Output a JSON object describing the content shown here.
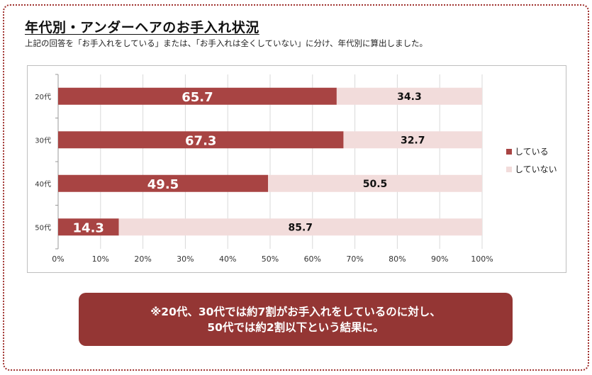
{
  "title": "年代別・アンダーヘアのお手入れ状況",
  "subtitle": "上記の回答を「お手入れをしている」または、「お手入れは全くしていない」に分け、年代別に算出しました。",
  "colors": {
    "doing": "#a84443",
    "not_doing": "#f2dcdb",
    "accent": "#943634"
  },
  "chart_data": {
    "type": "bar",
    "orientation": "horizontal",
    "stacked": true,
    "categories": [
      "20代",
      "30代",
      "40代",
      "50代"
    ],
    "series": [
      {
        "name": "している",
        "values": [
          65.7,
          67.3,
          49.5,
          14.3
        ],
        "labels": [
          "65.7",
          "67.3",
          "49.5",
          "14.3"
        ]
      },
      {
        "name": "していない",
        "values": [
          34.3,
          32.7,
          50.5,
          85.7
        ],
        "labels": [
          "34.3",
          "32.7",
          "50.5",
          "85.7"
        ]
      }
    ],
    "xlim": [
      0,
      100
    ],
    "xticks": [
      "0%",
      "10%",
      "20%",
      "30%",
      "40%",
      "50%",
      "60%",
      "70%",
      "80%",
      "90%",
      "100%"
    ],
    "grid": true,
    "legend": "right"
  },
  "note": {
    "line1": "※20代、30代では約7割がお手入れをしているのに対し、",
    "line2": "50代では約2割以下という結果に。"
  }
}
